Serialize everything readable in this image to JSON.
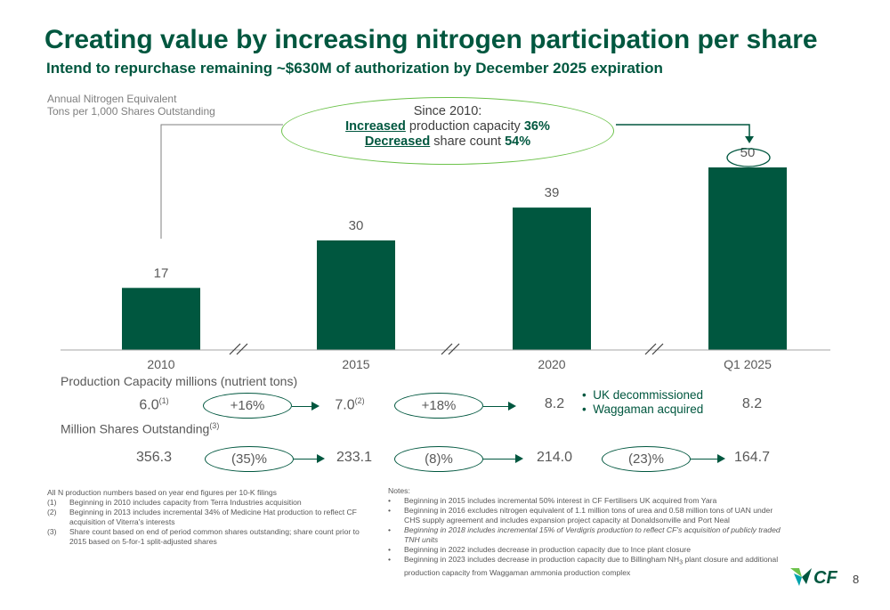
{
  "header": {
    "title": "Creating value by increasing nitrogen participation per share",
    "subtitle": "Intend to repurchase remaining ~$630M of authorization by December 2025 expiration"
  },
  "chart_data": {
    "type": "bar",
    "ylabel_line1": "Annual Nitrogen Equivalent",
    "ylabel_line2": "Tons per 1,000 Shares Outstanding",
    "categories": [
      "2010",
      "2015",
      "2020",
      "Q1 2025"
    ],
    "values": [
      17,
      30,
      39,
      50
    ],
    "data_labels": [
      "17",
      "30",
      "39",
      "50"
    ],
    "ylim": [
      0,
      50
    ],
    "grid": false,
    "bar_color": "#00573f",
    "accent_color": "#6cc24a"
  },
  "callout": {
    "line1": "Since 2010:",
    "increased": "Increased",
    "line2_rest": "production capacity",
    "increased_pct": "36%",
    "decreased": "Decreased",
    "line3_rest": "share count",
    "decreased_pct": "54%"
  },
  "production": {
    "label": "Production Capacity millions (nutrient tons)",
    "values": [
      {
        "value": "6.0",
        "note": "(1)"
      },
      {
        "value": "7.0",
        "note": "(2)"
      },
      {
        "value": "8.2",
        "note": ""
      },
      {
        "value": "8.2",
        "note": ""
      }
    ],
    "changes": [
      "+16%",
      "+18%"
    ],
    "bullets": [
      "UK decommissioned",
      "Waggaman acquired"
    ]
  },
  "shares": {
    "label": "Million Shares Outstanding",
    "label_note": "(3)",
    "values": [
      "356.3",
      "233.1",
      "214.0",
      "164.7"
    ],
    "changes": [
      "(35)%",
      "(8)%",
      "(23)%"
    ]
  },
  "footnotes_left": {
    "intro": "All N production numbers based on year end figures per 10-K filings",
    "items": [
      {
        "num": "(1)",
        "text": "Beginning in 2010 includes capacity from Terra Industries acquisition"
      },
      {
        "num": "(2)",
        "text": "Beginning in 2013 includes incremental 34% of Medicine Hat production to reflect CF acquisition of Viterra's interests"
      },
      {
        "num": "(3)",
        "text": "Share count based on end of period common shares outstanding; share count prior to 2015 based on 5-for-1 split-adjusted shares"
      }
    ]
  },
  "footnotes_right": {
    "heading": "Notes:",
    "items": [
      {
        "text": "Beginning in 2015 includes incremental 50% interest in CF Fertilisers UK acquired from Yara"
      },
      {
        "text": "Beginning in 2016 excludes nitrogen equivalent of 1.1 million tons of urea and 0.58 million tons of UAN under CHS supply agreement and includes expansion project capacity at Donaldsonville and Port Neal"
      },
      {
        "text": "Beginning in 2018 includes incremental 15% of Verdigris production to reflect CF's acquisition of publicly traded TNH units"
      },
      {
        "text": "Beginning in 2022 includes decrease in production capacity due to Ince plant closure"
      },
      {
        "text_a": "Beginning in 2023 includes decrease in production capacity due to Billingham NH",
        "sub": "3",
        "text_b": " plant closure and additional production capacity from Waggaman ammonia production complex"
      }
    ],
    "bullet": "•"
  },
  "footer": {
    "logo_text": "CF",
    "page_number": "8"
  }
}
